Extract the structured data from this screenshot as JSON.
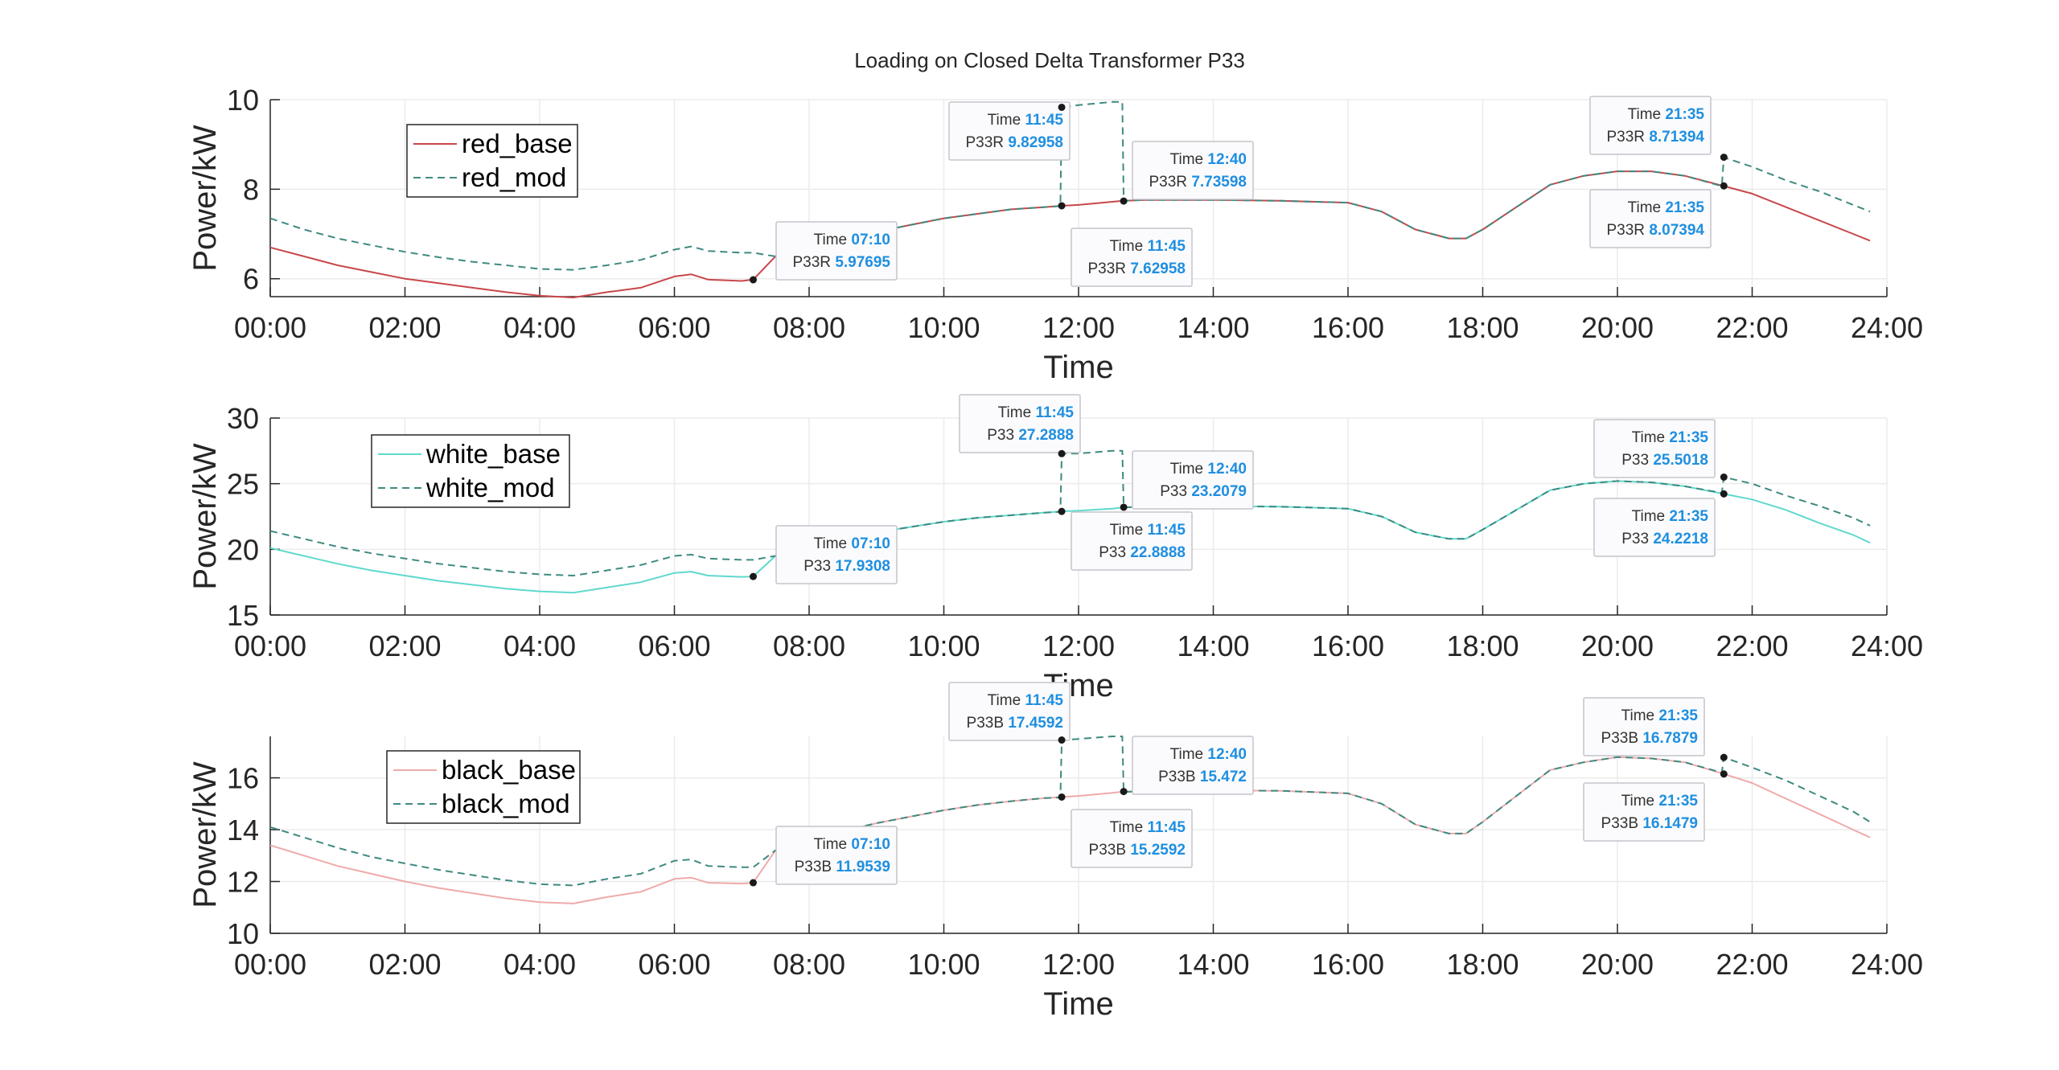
{
  "figure": {
    "title": "Loading on Closed Delta Transformer P33",
    "colors": {
      "red_base": "#c8474a",
      "red_mod": "#3f8a80",
      "white_base": "#5fd9cd",
      "white_mod": "#3f8a80",
      "black_base": "#efaaaa",
      "black_mod": "#3f8a80",
      "grid": "#ebebeb",
      "axis": "#262626",
      "datatip_value": "#1f8fe0"
    }
  },
  "chart_data": [
    {
      "type": "line",
      "xlabel": "Time",
      "ylabel": "Power/kW",
      "ylim": [
        5.6,
        10
      ],
      "yticks": [
        6,
        8,
        10
      ],
      "xlim": [
        0,
        24
      ],
      "xticks": [
        "00:00",
        "02:00",
        "04:00",
        "06:00",
        "08:00",
        "10:00",
        "12:00",
        "14:00",
        "16:00",
        "18:00",
        "20:00",
        "22:00",
        "24:00"
      ],
      "grid": true,
      "legend_placement": "upper-left",
      "series": [
        {
          "name": "red_base",
          "style": "solid",
          "x": [
            0,
            0.5,
            1,
            1.5,
            2,
            2.5,
            3,
            3.5,
            4,
            4.5,
            5,
            5.5,
            6,
            6.25,
            6.5,
            7,
            7.17,
            7.5,
            8,
            8.5,
            9,
            9.5,
            10,
            10.5,
            11,
            11.5,
            11.75,
            12,
            12.5,
            12.67,
            13,
            14,
            15,
            16,
            16.5,
            17,
            17.5,
            17.75,
            18,
            18.5,
            19,
            19.5,
            20,
            20.5,
            21,
            21.58,
            22,
            22.5,
            23,
            23.5,
            23.75
          ],
          "y": [
            6.7,
            6.5,
            6.3,
            6.15,
            6.0,
            5.9,
            5.8,
            5.7,
            5.62,
            5.58,
            5.7,
            5.8,
            6.05,
            6.1,
            5.98,
            5.95,
            5.98,
            6.5,
            6.7,
            6.9,
            7.05,
            7.2,
            7.35,
            7.45,
            7.55,
            7.6,
            7.63,
            7.65,
            7.72,
            7.74,
            7.76,
            7.76,
            7.74,
            7.7,
            7.5,
            7.1,
            6.9,
            6.9,
            7.1,
            7.6,
            8.1,
            8.3,
            8.4,
            8.4,
            8.3,
            8.07,
            7.9,
            7.6,
            7.3,
            7.0,
            6.85
          ]
        },
        {
          "name": "red_mod",
          "style": "dashed",
          "x": [
            0,
            0.5,
            1,
            1.5,
            2,
            2.5,
            3,
            3.5,
            4,
            4.5,
            5,
            5.5,
            6,
            6.25,
            6.5,
            7,
            7.17,
            7.5,
            8,
            8.5,
            9,
            9.5,
            10,
            10.5,
            11,
            11.5,
            11.73,
            11.75,
            12,
            12.5,
            12.65,
            12.67,
            13,
            14,
            15,
            16,
            16.5,
            17,
            17.5,
            17.75,
            18,
            18.5,
            19,
            19.5,
            20,
            20.5,
            21,
            21.55,
            21.58,
            22,
            22.5,
            23,
            23.5,
            23.75
          ],
          "y": [
            7.35,
            7.1,
            6.9,
            6.75,
            6.6,
            6.48,
            6.38,
            6.3,
            6.22,
            6.2,
            6.3,
            6.42,
            6.65,
            6.72,
            6.62,
            6.58,
            6.58,
            6.5,
            6.7,
            6.9,
            7.05,
            7.2,
            7.35,
            7.45,
            7.55,
            7.6,
            7.62,
            9.83,
            9.88,
            9.95,
            9.95,
            7.74,
            7.76,
            7.76,
            7.74,
            7.7,
            7.5,
            7.1,
            6.9,
            6.9,
            7.1,
            7.6,
            8.1,
            8.3,
            8.4,
            8.4,
            8.3,
            8.07,
            8.71,
            8.5,
            8.2,
            7.95,
            7.65,
            7.5
          ]
        }
      ],
      "datatips": [
        {
          "time": "07:10",
          "label": "P33R",
          "value": "5.97695",
          "x": 7.17,
          "y": 5.97695
        },
        {
          "time": "11:45",
          "label": "P33R",
          "value": "9.82958",
          "x": 11.75,
          "y": 9.82958
        },
        {
          "time": "11:45",
          "label": "P33R",
          "value": "7.62958",
          "x": 11.75,
          "y": 7.62958
        },
        {
          "time": "12:40",
          "label": "P33R",
          "value": "7.73598",
          "x": 12.67,
          "y": 7.73598
        },
        {
          "time": "21:35",
          "label": "P33R",
          "value": "8.71394",
          "x": 21.58,
          "y": 8.71394
        },
        {
          "time": "21:35",
          "label": "P33R",
          "value": "8.07394",
          "x": 21.58,
          "y": 8.07394
        }
      ]
    },
    {
      "type": "line",
      "xlabel": "Time",
      "ylabel": "Power/kW",
      "ylim": [
        15,
        30
      ],
      "yticks": [
        15,
        20,
        25,
        30
      ],
      "xlim": [
        0,
        24
      ],
      "xticks": [
        "00:00",
        "02:00",
        "04:00",
        "06:00",
        "08:00",
        "10:00",
        "12:00",
        "14:00",
        "16:00",
        "18:00",
        "20:00",
        "22:00",
        "24:00"
      ],
      "grid": true,
      "legend_placement": "upper-left",
      "series": [
        {
          "name": "white_base",
          "style": "solid",
          "x": [
            0,
            0.5,
            1,
            1.5,
            2,
            2.5,
            3,
            3.5,
            4,
            4.5,
            5,
            5.5,
            6,
            6.25,
            6.5,
            7,
            7.17,
            7.5,
            8,
            8.5,
            9,
            9.5,
            10,
            10.5,
            11,
            11.5,
            11.75,
            12,
            12.5,
            12.67,
            13,
            14,
            15,
            16,
            16.5,
            17,
            17.5,
            17.75,
            18,
            18.5,
            19,
            19.5,
            20,
            20.5,
            21,
            21.58,
            22,
            22.5,
            23,
            23.5,
            23.75
          ],
          "y": [
            20.1,
            19.5,
            18.9,
            18.4,
            18.0,
            17.6,
            17.3,
            17.0,
            16.8,
            16.7,
            17.1,
            17.5,
            18.2,
            18.3,
            18.0,
            17.9,
            17.93,
            19.5,
            20.2,
            20.8,
            21.3,
            21.7,
            22.1,
            22.4,
            22.6,
            22.8,
            22.89,
            22.95,
            23.1,
            23.2,
            23.25,
            23.3,
            23.25,
            23.1,
            22.5,
            21.3,
            20.8,
            20.8,
            21.5,
            23.0,
            24.5,
            25.0,
            25.2,
            25.1,
            24.8,
            24.22,
            23.8,
            23.0,
            22.0,
            21.1,
            20.5
          ]
        },
        {
          "name": "white_mod",
          "style": "dashed",
          "x": [
            0,
            0.5,
            1,
            1.5,
            2,
            2.5,
            3,
            3.5,
            4,
            4.5,
            5,
            5.5,
            6,
            6.25,
            6.5,
            7,
            7.17,
            7.5,
            8,
            8.5,
            9,
            9.5,
            10,
            10.5,
            11,
            11.5,
            11.73,
            11.75,
            12,
            12.5,
            12.65,
            12.67,
            13,
            14,
            15,
            16,
            16.5,
            17,
            17.5,
            17.75,
            18,
            18.5,
            19,
            19.5,
            20,
            20.5,
            21,
            21.55,
            21.58,
            22,
            22.5,
            23,
            23.5,
            23.75
          ],
          "y": [
            21.4,
            20.8,
            20.2,
            19.7,
            19.3,
            18.9,
            18.6,
            18.3,
            18.1,
            18.0,
            18.4,
            18.8,
            19.5,
            19.6,
            19.3,
            19.2,
            19.2,
            19.5,
            20.2,
            20.8,
            21.3,
            21.7,
            22.1,
            22.4,
            22.6,
            22.8,
            22.85,
            27.29,
            27.3,
            27.5,
            27.5,
            23.2,
            23.25,
            23.3,
            23.25,
            23.1,
            22.5,
            21.3,
            20.8,
            20.8,
            21.5,
            23.0,
            24.5,
            25.0,
            25.2,
            25.1,
            24.8,
            24.3,
            25.5,
            25.0,
            24.1,
            23.3,
            22.4,
            21.8
          ]
        }
      ],
      "datatips": [
        {
          "time": "07:10",
          "label": "P33",
          "value": "17.9308",
          "x": 7.17,
          "y": 17.9308
        },
        {
          "time": "11:45",
          "label": "P33",
          "value": "27.2888",
          "x": 11.75,
          "y": 27.2888
        },
        {
          "time": "11:45",
          "label": "P33",
          "value": "22.8888",
          "x": 11.75,
          "y": 22.8888
        },
        {
          "time": "12:40",
          "label": "P33",
          "value": "23.2079",
          "x": 12.67,
          "y": 23.2079
        },
        {
          "time": "21:35",
          "label": "P33",
          "value": "25.5018",
          "x": 21.58,
          "y": 25.5018
        },
        {
          "time": "21:35",
          "label": "P33",
          "value": "24.2218",
          "x": 21.58,
          "y": 24.2218
        }
      ]
    },
    {
      "type": "line",
      "xlabel": "Time",
      "ylabel": "Power/kW",
      "ylim": [
        10,
        17.6
      ],
      "yticks": [
        10,
        12,
        14,
        16
      ],
      "xlim": [
        0,
        24
      ],
      "xticks": [
        "00:00",
        "02:00",
        "04:00",
        "06:00",
        "08:00",
        "10:00",
        "12:00",
        "14:00",
        "16:00",
        "18:00",
        "20:00",
        "22:00",
        "24:00"
      ],
      "grid": true,
      "legend_placement": "upper-left",
      "series": [
        {
          "name": "black_base",
          "style": "solid",
          "x": [
            0,
            0.5,
            1,
            1.5,
            2,
            2.5,
            3,
            3.5,
            4,
            4.5,
            5,
            5.5,
            6,
            6.25,
            6.5,
            7,
            7.17,
            7.5,
            8,
            8.5,
            9,
            9.5,
            10,
            10.5,
            11,
            11.5,
            11.75,
            12,
            12.5,
            12.67,
            13,
            14,
            15,
            16,
            16.5,
            17,
            17.5,
            17.75,
            18,
            18.5,
            19,
            19.5,
            20,
            20.5,
            21,
            21.58,
            22,
            22.5,
            23,
            23.5,
            23.75
          ],
          "y": [
            13.4,
            13.0,
            12.6,
            12.3,
            12.0,
            11.75,
            11.55,
            11.35,
            11.2,
            11.15,
            11.4,
            11.6,
            12.1,
            12.15,
            11.95,
            11.92,
            11.95,
            13.2,
            13.6,
            13.95,
            14.25,
            14.5,
            14.75,
            14.95,
            15.1,
            15.22,
            15.26,
            15.3,
            15.42,
            15.47,
            15.5,
            15.52,
            15.5,
            15.4,
            15.0,
            14.2,
            13.85,
            13.85,
            14.3,
            15.3,
            16.3,
            16.6,
            16.8,
            16.75,
            16.6,
            16.15,
            15.8,
            15.2,
            14.6,
            14.0,
            13.7
          ]
        },
        {
          "name": "black_mod",
          "style": "dashed",
          "x": [
            0,
            0.5,
            1,
            1.5,
            2,
            2.5,
            3,
            3.5,
            4,
            4.5,
            5,
            5.5,
            6,
            6.25,
            6.5,
            7,
            7.17,
            7.5,
            8,
            8.5,
            9,
            9.5,
            10,
            10.5,
            11,
            11.5,
            11.73,
            11.75,
            12,
            12.5,
            12.65,
            12.67,
            13,
            14,
            15,
            16,
            16.5,
            17,
            17.5,
            17.75,
            18,
            18.5,
            19,
            19.5,
            20,
            20.5,
            21,
            21.55,
            21.58,
            22,
            22.5,
            23,
            23.5,
            23.75
          ],
          "y": [
            14.1,
            13.7,
            13.3,
            12.95,
            12.7,
            12.45,
            12.25,
            12.05,
            11.9,
            11.85,
            12.1,
            12.3,
            12.8,
            12.85,
            12.6,
            12.55,
            12.55,
            13.2,
            13.6,
            13.95,
            14.25,
            14.5,
            14.75,
            14.95,
            15.1,
            15.22,
            15.24,
            17.46,
            17.5,
            17.6,
            17.6,
            15.45,
            15.5,
            15.52,
            15.5,
            15.4,
            15.0,
            14.2,
            13.85,
            13.85,
            14.3,
            15.3,
            16.3,
            16.6,
            16.8,
            16.75,
            16.6,
            16.2,
            16.79,
            16.4,
            15.9,
            15.3,
            14.7,
            14.3
          ]
        }
      ],
      "datatips": [
        {
          "time": "07:10",
          "label": "P33B",
          "value": "11.9539",
          "x": 7.17,
          "y": 11.9539
        },
        {
          "time": "11:45",
          "label": "P33B",
          "value": "17.4592",
          "x": 11.75,
          "y": 17.4592
        },
        {
          "time": "11:45",
          "label": "P33B",
          "value": "15.2592",
          "x": 11.75,
          "y": 15.2592
        },
        {
          "time": "12:40",
          "label": "P33B",
          "value": "15.472",
          "x": 12.67,
          "y": 15.472
        },
        {
          "time": "21:35",
          "label": "P33B",
          "value": "16.7879",
          "x": 21.58,
          "y": 16.7879
        },
        {
          "time": "21:35",
          "label": "P33B",
          "value": "16.1479",
          "x": 21.58,
          "y": 16.1479
        }
      ]
    }
  ],
  "datatip_labels": {
    "time_prefix": "Time"
  }
}
